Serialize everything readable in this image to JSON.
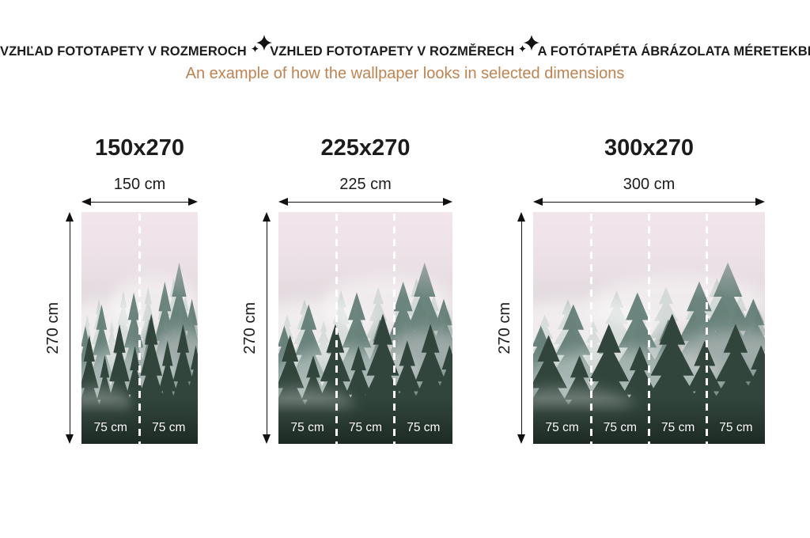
{
  "header": {
    "parts": [
      "VZHĽAD FOTOTAPETY V ROZMEROCH",
      "VZHLED FOTOTAPETY V ROZMĚRECH",
      "A FOTÓTAPÉTA ÁBRÁZOLATA MÉRETEKBEN"
    ],
    "separator_icon": "sparkle-star",
    "subtitle": "An example of how the wallpaper looks in selected dimensions"
  },
  "colors": {
    "heading": "#1c1c1c",
    "subtitle": "#c08350",
    "strip_label": "#ffffff",
    "arrow": "#111111"
  },
  "image_subject": "misty-pine-forest-wallpaper",
  "panels": [
    {
      "title": "150x270",
      "width_label": "150 cm",
      "height_label": "270 cm",
      "width_cm": 150,
      "height_cm": 270,
      "strips": [
        "75 cm",
        "75 cm"
      ]
    },
    {
      "title": "225x270",
      "width_label": "225 cm",
      "height_label": "270 cm",
      "width_cm": 225,
      "height_cm": 270,
      "strips": [
        "75 cm",
        "75 cm",
        "75 cm"
      ]
    },
    {
      "title": "300x270",
      "width_label": "300 cm",
      "height_label": "270 cm",
      "width_cm": 300,
      "height_cm": 270,
      "strips": [
        "75 cm",
        "75 cm",
        "75 cm",
        "75 cm"
      ]
    }
  ]
}
